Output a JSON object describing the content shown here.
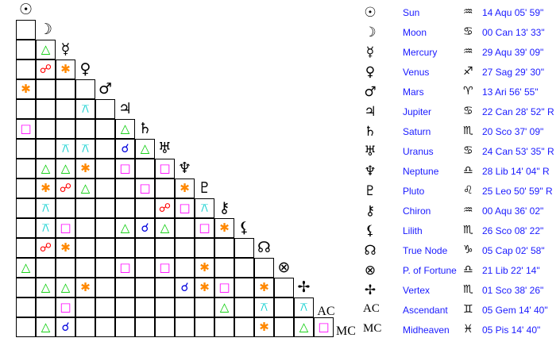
{
  "aspects": {
    "cj": {
      "name": "conjunction",
      "glyph": "☌",
      "color": "#0000dd"
    },
    "op": {
      "name": "opposition",
      "glyph": "☍",
      "color": "#ff0000"
    },
    "tr": {
      "name": "trine",
      "glyph": "△",
      "color": "#00cc00"
    },
    "sq": {
      "name": "square",
      "glyph": "□",
      "color": "#ff00ff"
    },
    "sx": {
      "name": "sextile",
      "glyph": "✱",
      "color": "#ff8800"
    },
    "qx": {
      "name": "quincunx",
      "glyph": "⚻",
      "color": "#00cccc"
    }
  },
  "bodies": [
    {
      "glyph": "☉",
      "name": "Sun",
      "sign": "♒",
      "position": "14 Aqu 05' 59\""
    },
    {
      "glyph": "☽",
      "name": "Moon",
      "sign": "♋",
      "position": "00 Can 13' 33\""
    },
    {
      "glyph": "☿",
      "name": "Mercury",
      "sign": "♒",
      "position": "29 Aqu 39' 09\""
    },
    {
      "glyph": "♀",
      "name": "Venus",
      "sign": "♐",
      "position": "27 Sag 29' 30\""
    },
    {
      "glyph": "♂",
      "name": "Mars",
      "sign": "♈",
      "position": "13 Ari 56' 55\""
    },
    {
      "glyph": "♃",
      "name": "Jupiter",
      "sign": "♋",
      "position": "22 Can 28' 52\" R"
    },
    {
      "glyph": "♄",
      "name": "Saturn",
      "sign": "♏",
      "position": "20 Sco 37' 09\""
    },
    {
      "glyph": "♅",
      "name": "Uranus",
      "sign": "♋",
      "position": "24 Can 53' 35\" R"
    },
    {
      "glyph": "♆",
      "name": "Neptune",
      "sign": "♎",
      "position": "28 Lib 14' 04\" R"
    },
    {
      "glyph": "♇",
      "name": "Pluto",
      "sign": "♌",
      "position": "25 Leo 50' 59\" R"
    },
    {
      "glyph": "⚷",
      "name": "Chiron",
      "sign": "♒",
      "position": "00 Aqu 36' 02\""
    },
    {
      "glyph": "⚸",
      "name": "Lilith",
      "sign": "♏",
      "position": "26 Sco 08' 22\""
    },
    {
      "glyph": "☊",
      "name": "True Node",
      "sign": "♑",
      "position": "05 Cap 02' 58\""
    },
    {
      "glyph": "⊗",
      "name": "P. of Fortune",
      "sign": "♎",
      "position": "21 Lib 22' 14\""
    },
    {
      "glyph": "✢",
      "name": "Vertex",
      "sign": "♏",
      "position": "01 Sco 38' 26\""
    },
    {
      "glyph": "AC",
      "name": "Ascendant",
      "sign": "♊",
      "position": "05 Gem 14' 40\""
    },
    {
      "glyph": "MC",
      "name": "Midheaven",
      "sign": "♓",
      "position": "05 Pis 14' 40\""
    }
  ],
  "grid": [
    [
      ""
    ],
    [
      "",
      "tr"
    ],
    [
      "",
      "op",
      "sx"
    ],
    [
      "sx",
      "",
      "",
      ""
    ],
    [
      "",
      "",
      "",
      "qx",
      ""
    ],
    [
      "sq",
      "",
      "",
      "",
      "",
      "tr"
    ],
    [
      "",
      "",
      "qx",
      "qx",
      "",
      "cj",
      "tr"
    ],
    [
      "",
      "tr",
      "tr",
      "sx",
      "",
      "sq",
      "",
      "sq"
    ],
    [
      "",
      "sx",
      "op",
      "tr",
      "",
      "",
      "sq",
      "",
      "sx"
    ],
    [
      "",
      "qx",
      "",
      "",
      "",
      "",
      "",
      "op",
      "sq",
      "qx"
    ],
    [
      "",
      "qx",
      "sq",
      "",
      "",
      "tr",
      "cj",
      "tr",
      "",
      "sq",
      "sx"
    ],
    [
      "",
      "op",
      "sx",
      "",
      "",
      "",
      "",
      "",
      "",
      "",
      "",
      ""
    ],
    [
      "tr",
      "",
      "",
      "",
      "",
      "sq",
      "",
      "sq",
      "",
      "sx",
      "",
      "",
      ""
    ],
    [
      "",
      "tr",
      "tr",
      "sx",
      "",
      "",
      "",
      "",
      "cj",
      "sx",
      "sq",
      "",
      "sx",
      ""
    ],
    [
      "",
      "",
      "sq",
      "",
      "",
      "",
      "",
      "",
      "",
      "",
      "tr",
      "",
      "qx",
      "",
      "qx"
    ],
    [
      "",
      "tr",
      "cj",
      "",
      "",
      "",
      "",
      "",
      "",
      "",
      "",
      "",
      "sx",
      "",
      "tr",
      "sq"
    ]
  ]
}
